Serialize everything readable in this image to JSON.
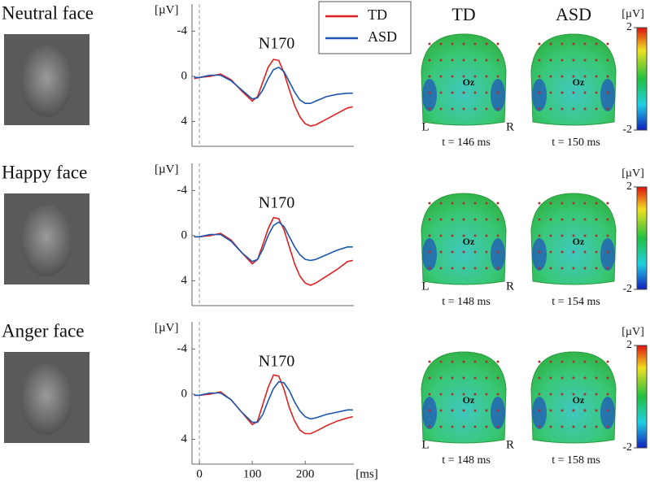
{
  "chart_data": [
    {
      "type": "line",
      "title": "Neutral face",
      "y_unit": "[µV]",
      "annotation": "N170",
      "x": [
        -10,
        0,
        20,
        40,
        60,
        80,
        100,
        110,
        120,
        130,
        140,
        150,
        160,
        170,
        180,
        190,
        200,
        210,
        220,
        240,
        260,
        280,
        290
      ],
      "series": [
        {
          "name": "TD",
          "color": "#e02020",
          "values": [
            0.2,
            0.1,
            0,
            -0.2,
            0.3,
            1.3,
            2.2,
            1.8,
            0.5,
            -0.8,
            -1.5,
            -1.4,
            -0.3,
            1.2,
            2.6,
            3.6,
            4.2,
            4.4,
            4.3,
            3.8,
            3.3,
            2.8,
            2.7
          ]
        },
        {
          "name": "ASD",
          "color": "#1a56b0",
          "values": [
            0.1,
            0.1,
            -0.1,
            -0.1,
            0.4,
            1.2,
            2.0,
            1.9,
            1.2,
            0.2,
            -0.6,
            -0.8,
            -0.4,
            0.5,
            1.4,
            2.1,
            2.4,
            2.4,
            2.2,
            1.8,
            1.6,
            1.5,
            1.5
          ]
        }
      ],
      "xlim": [
        -14,
        292
      ],
      "ylim": [
        6.2,
        -6.4
      ],
      "yticks": [
        -4,
        0,
        4
      ],
      "legend": "top-right"
    },
    {
      "type": "line",
      "title": "Happy face",
      "y_unit": "[µV]",
      "annotation": "N170",
      "x": [
        -10,
        0,
        20,
        40,
        60,
        80,
        100,
        110,
        120,
        130,
        140,
        150,
        160,
        170,
        180,
        190,
        200,
        210,
        220,
        240,
        260,
        280,
        290
      ],
      "series": [
        {
          "name": "TD",
          "color": "#e02020",
          "values": [
            0.1,
            0.1,
            0,
            -0.2,
            0.4,
            1.5,
            2.5,
            2.1,
            0.8,
            -0.6,
            -1.6,
            -1.5,
            -0.5,
            1.0,
            2.5,
            3.6,
            4.2,
            4.4,
            4.2,
            3.6,
            3.0,
            2.3,
            2.2
          ]
        },
        {
          "name": "ASD",
          "color": "#1a56b0",
          "values": [
            0.1,
            0.1,
            -0.1,
            -0.1,
            0.5,
            1.5,
            2.3,
            2.1,
            1.2,
            0,
            -0.9,
            -1.2,
            -0.8,
            0.1,
            1.0,
            1.7,
            2.1,
            2.2,
            2.1,
            1.7,
            1.3,
            1.0,
            1.0
          ]
        }
      ],
      "xlim": [
        -14,
        292
      ],
      "ylim": [
        6.2,
        -6.4
      ],
      "yticks": [
        -4,
        0,
        4
      ]
    },
    {
      "type": "line",
      "title": "Anger face",
      "y_unit": "[µV]",
      "annotation": "N170",
      "x_label": "[ms]",
      "x": [
        -10,
        0,
        20,
        40,
        60,
        80,
        100,
        110,
        120,
        130,
        140,
        150,
        160,
        170,
        180,
        190,
        200,
        210,
        220,
        240,
        260,
        280,
        290
      ],
      "series": [
        {
          "name": "TD",
          "color": "#e02020",
          "values": [
            0.1,
            0.1,
            0,
            -0.2,
            0.5,
            1.6,
            2.7,
            2.4,
            0.9,
            -0.6,
            -1.7,
            -1.6,
            -0.4,
            1.2,
            2.4,
            3.2,
            3.5,
            3.5,
            3.3,
            2.8,
            2.4,
            2.1,
            2.0
          ]
        },
        {
          "name": "ASD",
          "color": "#1a56b0",
          "values": [
            0.1,
            0.1,
            -0.1,
            -0.1,
            0.5,
            1.6,
            2.5,
            2.5,
            1.8,
            0.6,
            -0.5,
            -1.1,
            -1.0,
            -0.3,
            0.7,
            1.5,
            2.0,
            2.2,
            2.1,
            1.8,
            1.6,
            1.4,
            1.4
          ]
        }
      ],
      "xlim": [
        -14,
        292
      ],
      "ylim": [
        6.2,
        -6.4
      ],
      "yticks": [
        -4,
        0,
        4
      ],
      "xticks": [
        0,
        100,
        200
      ]
    }
  ],
  "topomaps": {
    "headers": [
      "TD",
      "ASD"
    ],
    "left": "L",
    "right": "R",
    "electrode": "Oz",
    "colorbar_unit": "[µV]",
    "colorbar_ticks": [
      2,
      -2
    ],
    "times": [
      [
        "t = 146 ms",
        "t = 150 ms"
      ],
      [
        "t = 148 ms",
        "t = 154 ms"
      ],
      [
        "t = 148 ms",
        "t = 158 ms"
      ]
    ]
  }
}
